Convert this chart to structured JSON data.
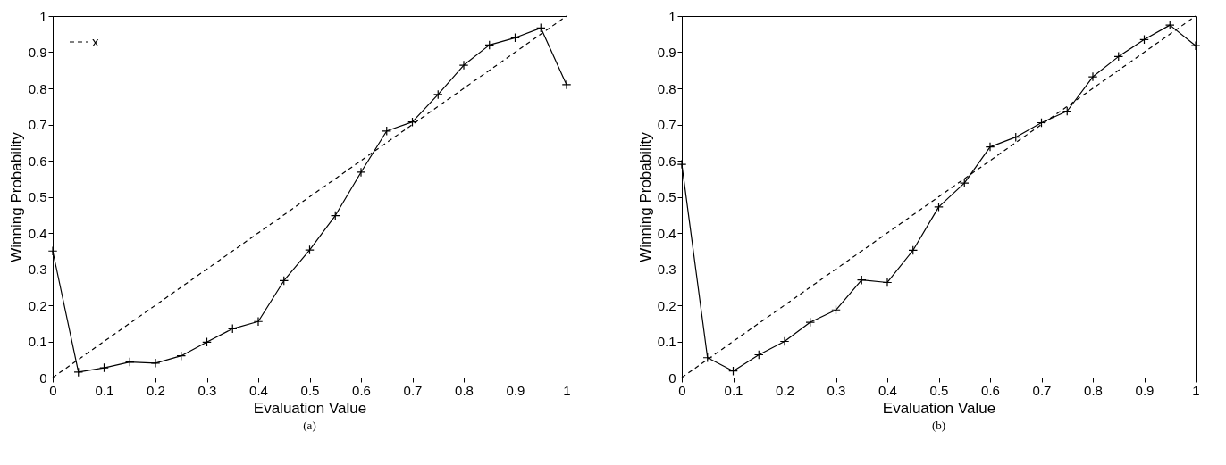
{
  "chart_data": [
    {
      "type": "line",
      "xlabel": "Evaluation Value",
      "ylabel": "Winning Probability",
      "annotations": [
        "(a)"
      ],
      "xlim": [
        0,
        1
      ],
      "ylim": [
        0,
        1
      ],
      "xticks": [
        0,
        0.1,
        0.2,
        0.3,
        0.4,
        0.5,
        0.6,
        0.7,
        0.8,
        0.9,
        1
      ],
      "yticks": [
        0,
        0.1,
        0.2,
        0.3,
        0.4,
        0.5,
        0.6,
        0.7,
        0.8,
        0.9,
        1
      ],
      "grid": false,
      "legend": "top left",
      "marker": "cross",
      "x": [
        0,
        0.05,
        0.1,
        0.15,
        0.2,
        0.25,
        0.3,
        0.35,
        0.4,
        0.45,
        0.5,
        0.55,
        0.6,
        0.65,
        0.7,
        0.75,
        0.8,
        0.85,
        0.9,
        0.95,
        1
      ],
      "series": [
        {
          "color": "#000000",
          "line_style": "solid",
          "values": [
            0.35,
            0.015,
            0.027,
            0.043,
            0.04,
            0.06,
            0.098,
            0.135,
            0.155,
            0.268,
            0.353,
            0.448,
            0.568,
            0.682,
            0.707,
            0.783,
            0.864,
            0.92,
            0.94,
            0.967,
            0.81
          ]
        },
        {
          "name": "x",
          "color": "#000000",
          "line_style": "dashed",
          "marker": "none",
          "values": [
            0,
            0.05,
            0.1,
            0.15,
            0.2,
            0.25,
            0.3,
            0.35,
            0.4,
            0.45,
            0.5,
            0.55,
            0.6,
            0.65,
            0.7,
            0.75,
            0.8,
            0.85,
            0.9,
            0.95,
            1
          ]
        }
      ]
    },
    {
      "type": "line",
      "xlabel": "Evaluation Value",
      "ylabel": "Winning Probability",
      "annotations": [
        "(b)"
      ],
      "xlim": [
        0,
        1
      ],
      "ylim": [
        0,
        1
      ],
      "xticks": [
        0,
        0.1,
        0.2,
        0.3,
        0.4,
        0.5,
        0.6,
        0.7,
        0.8,
        0.9,
        1
      ],
      "yticks": [
        0,
        0.1,
        0.2,
        0.3,
        0.4,
        0.5,
        0.6,
        0.7,
        0.8,
        0.9,
        1
      ],
      "grid": false,
      "legend": "top left",
      "marker": "cross",
      "x": [
        0,
        0.05,
        0.1,
        0.15,
        0.2,
        0.25,
        0.3,
        0.35,
        0.4,
        0.45,
        0.5,
        0.55,
        0.6,
        0.65,
        0.7,
        0.75,
        0.8,
        0.85,
        0.9,
        0.95,
        1
      ],
      "series": [
        {
          "color": "#000000",
          "line_style": "solid",
          "values": [
            0.59,
            0.055,
            0.018,
            0.063,
            0.1,
            0.153,
            0.187,
            0.27,
            0.263,
            0.352,
            0.472,
            0.538,
            0.638,
            0.665,
            0.705,
            0.737,
            0.832,
            0.888,
            0.935,
            0.975,
            0.918
          ]
        },
        {
          "name": "x",
          "color": "#000000",
          "line_style": "dashed",
          "marker": "none",
          "values": [
            0,
            0.05,
            0.1,
            0.15,
            0.2,
            0.25,
            0.3,
            0.35,
            0.4,
            0.45,
            0.5,
            0.55,
            0.6,
            0.65,
            0.7,
            0.75,
            0.8,
            0.85,
            0.9,
            0.95,
            1
          ]
        }
      ]
    }
  ]
}
